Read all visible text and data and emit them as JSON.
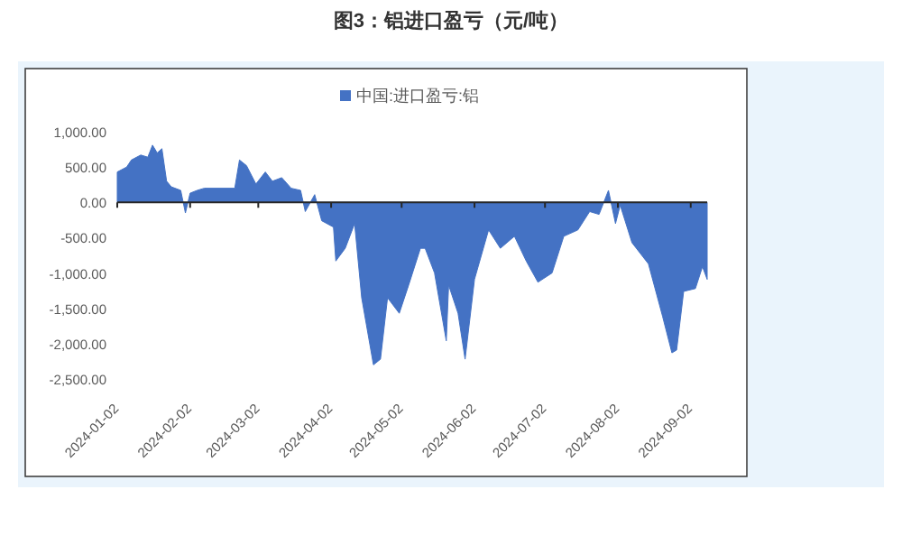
{
  "chart_data": {
    "type": "area",
    "title": "图3：铝进口盈亏（元/吨）",
    "x": [
      "2024-01-02",
      "2024-01-06",
      "2024-01-08",
      "2024-01-12",
      "2024-01-15",
      "2024-01-17",
      "2024-01-19",
      "2024-01-21",
      "2024-01-23",
      "2024-01-25",
      "2024-01-29",
      "2024-01-31",
      "2024-02-02",
      "2024-02-05",
      "2024-02-08",
      "2024-02-21",
      "2024-02-23",
      "2024-02-26",
      "2024-03-01",
      "2024-03-05",
      "2024-03-08",
      "2024-03-12",
      "2024-03-16",
      "2024-03-20",
      "2024-03-22",
      "2024-03-26",
      "2024-03-29",
      "2024-04-03",
      "2024-04-04",
      "2024-04-08",
      "2024-04-12",
      "2024-04-15",
      "2024-04-20",
      "2024-04-23",
      "2024-04-26",
      "2024-05-01",
      "2024-05-05",
      "2024-05-10",
      "2024-05-12",
      "2024-05-16",
      "2024-05-21",
      "2024-05-22",
      "2024-05-26",
      "2024-05-29",
      "2024-06-02",
      "2024-06-08",
      "2024-06-13",
      "2024-06-19",
      "2024-06-24",
      "2024-06-29",
      "2024-07-05",
      "2024-07-10",
      "2024-07-16",
      "2024-07-21",
      "2024-07-25",
      "2024-07-29",
      "2024-08-01",
      "2024-08-03",
      "2024-08-08",
      "2024-08-15",
      "2024-08-21",
      "2024-08-25",
      "2024-08-27",
      "2024-08-30",
      "2024-09-04",
      "2024-09-07",
      "2024-09-09"
    ],
    "series": [
      {
        "name": "中国:进口盈亏:铝",
        "color": "#4472c4",
        "values": [
          430,
          500,
          600,
          670,
          640,
          810,
          700,
          760,
          300,
          220,
          170,
          -150,
          130,
          170,
          200,
          200,
          600,
          520,
          260,
          430,
          300,
          350,
          200,
          170,
          -130,
          110,
          -260,
          -350,
          -830,
          -650,
          -300,
          -1350,
          -2300,
          -2220,
          -1350,
          -1570,
          -1170,
          -650,
          -650,
          -1000,
          -1960,
          -1170,
          -1570,
          -2220,
          -1090,
          -390,
          -650,
          -480,
          -830,
          -1130,
          -1000,
          -480,
          -390,
          -130,
          -170,
          170,
          -300,
          -40,
          -570,
          -870,
          -1610,
          -2130,
          -2090,
          -1260,
          -1220,
          -910,
          -1090
        ]
      }
    ],
    "xlim": [
      "2024-01-02",
      "2024-09-09"
    ],
    "xticks": [
      {
        "value": "2024-01-02",
        "label": "2024-01-02"
      },
      {
        "value": "2024-02-02",
        "label": "2024-02-02"
      },
      {
        "value": "2024-03-02",
        "label": "2024-03-02"
      },
      {
        "value": "2024-04-02",
        "label": "2024-04-02"
      },
      {
        "value": "2024-05-02",
        "label": "2024-05-02"
      },
      {
        "value": "2024-06-02",
        "label": "2024-06-02"
      },
      {
        "value": "2024-07-02",
        "label": "2024-07-02"
      },
      {
        "value": "2024-08-02",
        "label": "2024-08-02"
      },
      {
        "value": "2024-09-02",
        "label": "2024-09-02"
      }
    ],
    "ylim": [
      -2500,
      1000
    ],
    "yticks": [
      {
        "value": 1000,
        "label": "1,000.00"
      },
      {
        "value": 500,
        "label": "500.00"
      },
      {
        "value": 0,
        "label": "0.00"
      },
      {
        "value": -500,
        "label": "-500.00"
      },
      {
        "value": -1000,
        "label": "-1,000.00"
      },
      {
        "value": -1500,
        "label": "-1,500.00"
      },
      {
        "value": -2000,
        "label": "-2,000.00"
      },
      {
        "value": -2500,
        "label": "-2,500.00"
      }
    ],
    "legend": "top"
  }
}
